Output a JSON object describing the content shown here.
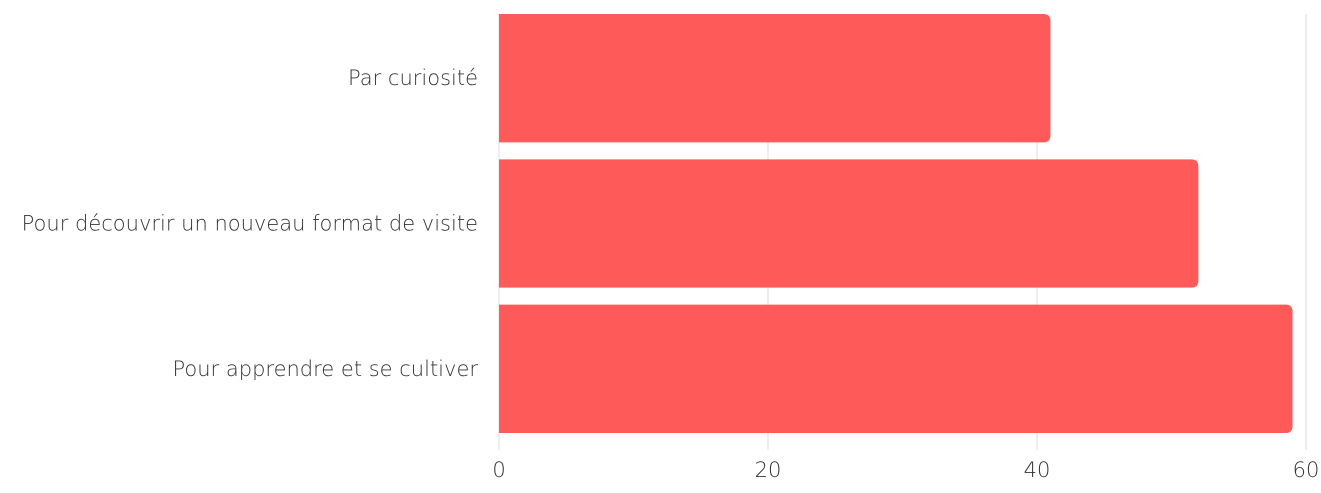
{
  "chart_data": {
    "type": "bar",
    "orientation": "horizontal",
    "categories": [
      "Par curiosité",
      "Pour découvrir un nouveau format de visite",
      "Pour apprendre et se cultiver"
    ],
    "values": [
      41,
      52,
      59
    ],
    "title": "",
    "xlabel": "",
    "ylabel": "",
    "xlim": [
      0,
      60
    ],
    "xticks": [
      "0",
      "20",
      "40",
      "60"
    ],
    "grid": true,
    "legend": "none",
    "bar_color": "#ff5a5a"
  }
}
